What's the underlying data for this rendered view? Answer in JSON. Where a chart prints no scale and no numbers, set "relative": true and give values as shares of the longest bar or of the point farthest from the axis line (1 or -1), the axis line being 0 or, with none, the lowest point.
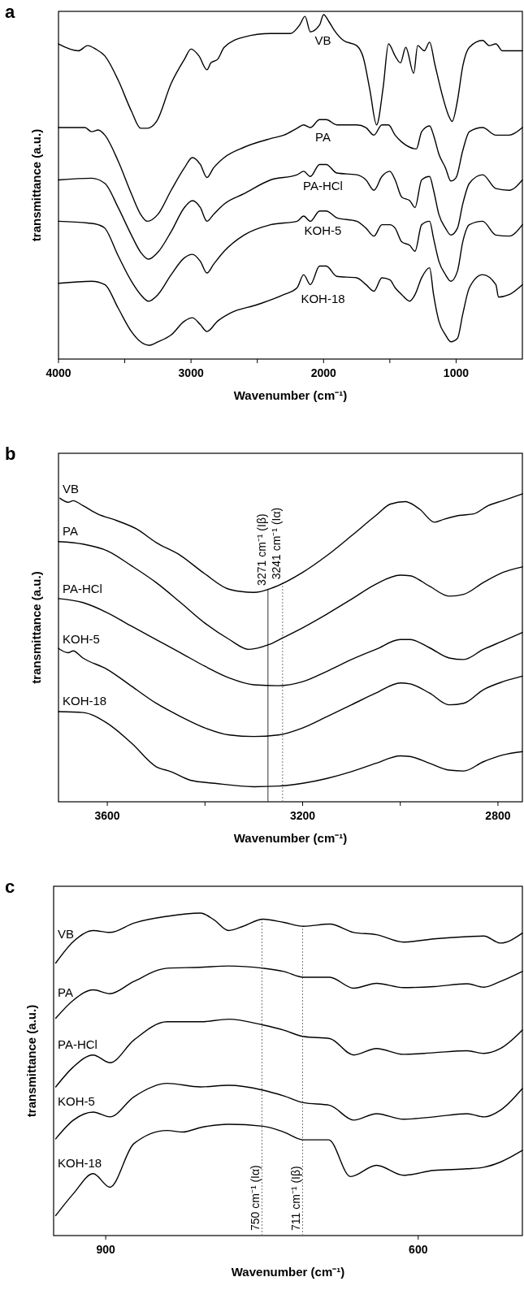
{
  "chart_data": [
    {
      "type": "line",
      "title": "a",
      "xlabel": "Wavenumber (cm⁻¹)",
      "ylabel": "transmittance (a.u.)",
      "relative": true,
      "tick_labels": "x",
      "xlim": [
        4000,
        500
      ],
      "xticks": [
        4000,
        {
          "value": 3500,
          "label": null
        },
        3000,
        {
          "value": 2500,
          "label": null
        },
        2000,
        {
          "value": 1500,
          "label": null
        },
        1000
      ],
      "series": [
        {
          "name": "VB",
          "color": "#000000",
          "x": [
            4000,
            3850,
            3780,
            3720,
            3650,
            3550,
            3450,
            3380,
            3330,
            3260,
            3150,
            3050,
            3000,
            2940,
            2880,
            2850,
            2800,
            2750,
            2600,
            2400,
            2250,
            2180,
            2140,
            2100,
            2030,
            2000,
            1960,
            1920,
            1850,
            1750,
            1700,
            1650,
            1600,
            1550,
            1510,
            1460,
            1420,
            1380,
            1320,
            1290,
            1240,
            1200,
            1160,
            1100,
            1060,
            1030,
            990,
            950,
            900,
            800,
            750,
            700,
            650,
            600,
            500
          ],
          "values": [
            0.915,
            0.895,
            0.91,
            0.9,
            0.88,
            0.81,
            0.72,
            0.67,
            0.67,
            0.69,
            0.8,
            0.87,
            0.9,
            0.88,
            0.84,
            0.86,
            0.87,
            0.905,
            0.935,
            0.945,
            0.945,
            0.97,
            0.995,
            0.95,
            0.97,
            1.0,
            0.98,
            0.955,
            0.925,
            0.91,
            0.875,
            0.78,
            0.68,
            0.79,
            0.915,
            0.88,
            0.86,
            0.905,
            0.83,
            0.91,
            0.895,
            0.92,
            0.855,
            0.76,
            0.71,
            0.69,
            0.75,
            0.85,
            0.905,
            0.925,
            0.91,
            0.915,
            0.895,
            0.895,
            0.895
          ]
        },
        {
          "name": "PA",
          "color": "#000000",
          "x": [
            4000,
            3800,
            3750,
            3700,
            3650,
            3550,
            3450,
            3380,
            3330,
            3250,
            3150,
            3050,
            2990,
            2930,
            2880,
            2830,
            2750,
            2600,
            2400,
            2300,
            2200,
            2150,
            2100,
            2030,
            1980,
            1900,
            1750,
            1680,
            1620,
            1560,
            1510,
            1460,
            1410,
            1350,
            1300,
            1260,
            1200,
            1170,
            1130,
            1080,
            1040,
            1000,
            950,
            900,
            800,
            700,
            600,
            500
          ],
          "values": [
            0.672,
            0.672,
            0.66,
            0.665,
            0.65,
            0.575,
            0.48,
            0.42,
            0.4,
            0.42,
            0.49,
            0.555,
            0.585,
            0.565,
            0.527,
            0.555,
            0.585,
            0.615,
            0.64,
            0.65,
            0.67,
            0.68,
            0.672,
            0.695,
            0.695,
            0.68,
            0.68,
            0.672,
            0.65,
            0.68,
            0.68,
            0.65,
            0.63,
            0.615,
            0.61,
            0.66,
            0.677,
            0.65,
            0.595,
            0.555,
            0.517,
            0.527,
            0.605,
            0.66,
            0.672,
            0.65,
            0.65,
            0.672
          ]
        },
        {
          "name": "PA-HCl",
          "color": "#000000",
          "x": [
            4000,
            3750,
            3650,
            3550,
            3450,
            3380,
            3320,
            3250,
            3150,
            3050,
            2990,
            2930,
            2880,
            2830,
            2750,
            2600,
            2400,
            2200,
            2150,
            2100,
            2030,
            1980,
            1900,
            1750,
            1680,
            1620,
            1560,
            1500,
            1460,
            1410,
            1350,
            1310,
            1260,
            1200,
            1170,
            1130,
            1080,
            1040,
            990,
            950,
            900,
            800,
            700,
            600,
            500
          ],
          "values": [
            0.52,
            0.525,
            0.51,
            0.44,
            0.36,
            0.31,
            0.29,
            0.31,
            0.37,
            0.44,
            0.46,
            0.44,
            0.4,
            0.42,
            0.45,
            0.48,
            0.52,
            0.535,
            0.545,
            0.53,
            0.565,
            0.565,
            0.54,
            0.535,
            0.52,
            0.49,
            0.53,
            0.545,
            0.52,
            0.47,
            0.46,
            0.44,
            0.52,
            0.53,
            0.49,
            0.42,
            0.38,
            0.36,
            0.38,
            0.45,
            0.51,
            0.535,
            0.495,
            0.49,
            0.52
          ]
        },
        {
          "name": "KOH-5",
          "color": "#000000",
          "x": [
            4000,
            3780,
            3700,
            3650,
            3550,
            3450,
            3380,
            3320,
            3250,
            3150,
            3050,
            2990,
            2930,
            2880,
            2830,
            2750,
            2600,
            2400,
            2200,
            2150,
            2100,
            2030,
            1980,
            1900,
            1750,
            1680,
            1620,
            1560,
            1500,
            1460,
            1410,
            1350,
            1310,
            1260,
            1200,
            1170,
            1130,
            1080,
            1040,
            990,
            950,
            900,
            800,
            700,
            600,
            500
          ],
          "values": [
            0.4,
            0.395,
            0.39,
            0.38,
            0.3,
            0.226,
            0.187,
            0.168,
            0.187,
            0.245,
            0.294,
            0.304,
            0.284,
            0.25,
            0.275,
            0.313,
            0.36,
            0.39,
            0.4,
            0.415,
            0.4,
            0.43,
            0.43,
            0.41,
            0.4,
            0.38,
            0.357,
            0.39,
            0.39,
            0.38,
            0.34,
            0.33,
            0.313,
            0.39,
            0.4,
            0.35,
            0.284,
            0.245,
            0.226,
            0.255,
            0.34,
            0.39,
            0.4,
            0.36,
            0.357,
            0.39
          ]
        },
        {
          "name": "KOH-18",
          "color": "#000000",
          "x": [
            4000,
            3750,
            3650,
            3550,
            3450,
            3380,
            3320,
            3250,
            3150,
            3050,
            2990,
            2930,
            2880,
            2800,
            2700,
            2500,
            2300,
            2200,
            2150,
            2100,
            2030,
            1980,
            1900,
            1750,
            1680,
            1620,
            1560,
            1500,
            1460,
            1410,
            1350,
            1310,
            1260,
            1200,
            1170,
            1130,
            1080,
            1040,
            990,
            950,
            900,
            800,
            700,
            680,
            600,
            500
          ],
          "values": [
            0.22,
            0.226,
            0.216,
            0.148,
            0.08,
            0.05,
            0.04,
            0.05,
            0.07,
            0.11,
            0.12,
            0.1,
            0.08,
            0.11,
            0.134,
            0.158,
            0.187,
            0.207,
            0.245,
            0.216,
            0.27,
            0.27,
            0.24,
            0.236,
            0.216,
            0.197,
            0.236,
            0.23,
            0.207,
            0.187,
            0.168,
            0.187,
            0.236,
            0.265,
            0.187,
            0.11,
            0.07,
            0.05,
            0.06,
            0.13,
            0.207,
            0.245,
            0.216,
            0.18,
            0.187,
            0.216
          ]
        }
      ]
    },
    {
      "type": "line",
      "title": "b",
      "xlabel": "Wavenumber (cm⁻¹)",
      "ylabel": "transmittance (a.u.)",
      "relative": true,
      "tick_labels": "x",
      "xlim": [
        3700,
        2750
      ],
      "xticks": [
        3600,
        {
          "value": 3400,
          "label": null
        },
        3200,
        {
          "value": 3000,
          "label": null
        },
        2800
      ],
      "ref_lines": [
        {
          "axis": "x",
          "value": 3271,
          "label": "3271 cm⁻¹ (Iβ)",
          "color": "#333333",
          "line_style": "solid"
        },
        {
          "axis": "x",
          "value": 3241,
          "label": "3241 cm⁻¹ (Iα)",
          "color": "#777777",
          "line_style": "dotted"
        }
      ],
      "series": [
        {
          "name": "VB",
          "color": "#000000",
          "x": [
            3697,
            3680,
            3670,
            3650,
            3620,
            3580,
            3540,
            3500,
            3450,
            3400,
            3350,
            3300,
            3260,
            3200,
            3150,
            3100,
            3050,
            3020,
            2990,
            2960,
            2930,
            2910,
            2880,
            2850,
            2820,
            2790,
            2750
          ],
          "values": [
            0.986,
            0.973,
            0.978,
            0.962,
            0.935,
            0.913,
            0.886,
            0.842,
            0.8,
            0.74,
            0.69,
            0.68,
            0.696,
            0.745,
            0.8,
            0.864,
            0.93,
            0.967,
            0.975,
            0.95,
            0.908,
            0.918,
            0.93,
            0.935,
            0.962,
            0.978,
            1.0
          ]
        },
        {
          "name": "PA",
          "color": "#000000",
          "x": [
            3700,
            3650,
            3600,
            3550,
            3500,
            3450,
            3400,
            3350,
            3310,
            3270,
            3240,
            3200,
            3150,
            3100,
            3050,
            3000,
            2980,
            2940,
            2900,
            2870,
            2830,
            2790,
            2750
          ],
          "values": [
            0.845,
            0.837,
            0.815,
            0.766,
            0.712,
            0.647,
            0.58,
            0.527,
            0.495,
            0.51,
            0.533,
            0.565,
            0.61,
            0.658,
            0.707,
            0.736,
            0.734,
            0.7,
            0.668,
            0.674,
            0.712,
            0.745,
            0.763
          ]
        },
        {
          "name": "PA-HCl",
          "color": "#000000",
          "x": [
            3700,
            3650,
            3600,
            3550,
            3500,
            3450,
            3400,
            3350,
            3300,
            3250,
            3200,
            3150,
            3100,
            3050,
            3000,
            2980,
            2940,
            2900,
            2870,
            2830,
            2790,
            2750
          ],
          "values": [
            0.66,
            0.647,
            0.614,
            0.57,
            0.527,
            0.484,
            0.44,
            0.402,
            0.38,
            0.377,
            0.39,
            0.424,
            0.462,
            0.495,
            0.527,
            0.527,
            0.5,
            0.467,
            0.462,
            0.495,
            0.522,
            0.55
          ]
        },
        {
          "name": "KOH-5",
          "color": "#000000",
          "x": [
            3700,
            3680,
            3670,
            3650,
            3600,
            3550,
            3500,
            3450,
            3400,
            3350,
            3300,
            3250,
            3200,
            3150,
            3100,
            3050,
            3000,
            2980,
            2940,
            2900,
            2870,
            2830,
            2790,
            2750
          ],
          "values": [
            0.498,
            0.484,
            0.49,
            0.467,
            0.43,
            0.375,
            0.32,
            0.277,
            0.24,
            0.217,
            0.212,
            0.217,
            0.24,
            0.277,
            0.315,
            0.353,
            0.386,
            0.383,
            0.353,
            0.315,
            0.32,
            0.364,
            0.39,
            0.408
          ]
        },
        {
          "name": "KOH-18",
          "color": "#000000",
          "x": [
            3700,
            3650,
            3600,
            3550,
            3500,
            3470,
            3430,
            3380,
            3300,
            3250,
            3200,
            3150,
            3100,
            3050,
            3000,
            2980,
            2940,
            2900,
            2870,
            2830,
            2790,
            2750
          ],
          "values": [
            0.293,
            0.29,
            0.255,
            0.19,
            0.114,
            0.098,
            0.07,
            0.06,
            0.049,
            0.051,
            0.06,
            0.076,
            0.098,
            0.125,
            0.149,
            0.147,
            0.125,
            0.103,
            0.1,
            0.13,
            0.152,
            0.163
          ]
        }
      ]
    },
    {
      "type": "line",
      "title": "c",
      "xlabel": "Wavenumber (cm⁻¹)",
      "ylabel": "transmittance (a.u.)",
      "relative": true,
      "tick_labels": "x",
      "xlim": [
        950,
        500
      ],
      "xticks": [
        900,
        600
      ],
      "ref_lines": [
        {
          "axis": "x",
          "value": 750,
          "label": "750 cm⁻¹ (Iα)",
          "color": "#777777",
          "line_style": "dotted"
        },
        {
          "axis": "x",
          "value": 711,
          "label": "711 cm⁻¹ (Iβ)",
          "color": "#777777",
          "line_style": "dotted"
        }
      ],
      "series": [
        {
          "name": "VB",
          "color": "#000000",
          "x": [
            948,
            931,
            912,
            896,
            873,
            841,
            809,
            796,
            782,
            768,
            749,
            729,
            710,
            685,
            662,
            640,
            614,
            585,
            553,
            537,
            521,
            500
          ],
          "values": [
            0.845,
            0.912,
            0.946,
            0.94,
            0.969,
            0.99,
            1.0,
            0.979,
            0.946,
            0.959,
            0.981,
            0.971,
            0.959,
            0.966,
            0.94,
            0.933,
            0.91,
            0.92,
            0.927,
            0.929,
            0.907,
            0.938
          ]
        },
        {
          "name": "PA",
          "color": "#000000",
          "x": [
            948,
            931,
            912,
            896,
            873,
            841,
            809,
            782,
            749,
            729,
            710,
            685,
            662,
            640,
            614,
            585,
            553,
            537,
            521,
            500
          ],
          "values": [
            0.674,
            0.73,
            0.762,
            0.75,
            0.788,
            0.829,
            0.832,
            0.836,
            0.829,
            0.819,
            0.801,
            0.801,
            0.767,
            0.782,
            0.769,
            0.772,
            0.781,
            0.77,
            0.788,
            0.819
          ]
        },
        {
          "name": "PA-HCl",
          "color": "#000000",
          "x": [
            948,
            931,
            912,
            896,
            873,
            841,
            809,
            782,
            749,
            729,
            710,
            685,
            662,
            640,
            614,
            585,
            553,
            537,
            521,
            500
          ],
          "values": [
            0.461,
            0.523,
            0.56,
            0.536,
            0.606,
            0.663,
            0.663,
            0.671,
            0.653,
            0.637,
            0.617,
            0.611,
            0.56,
            0.58,
            0.562,
            0.567,
            0.573,
            0.565,
            0.58,
            0.637
          ]
        },
        {
          "name": "KOH-5",
          "color": "#000000",
          "x": [
            948,
            931,
            912,
            896,
            873,
            841,
            809,
            782,
            749,
            729,
            710,
            685,
            662,
            640,
            614,
            585,
            553,
            537,
            521,
            500
          ],
          "values": [
            0.3,
            0.358,
            0.383,
            0.368,
            0.43,
            0.472,
            0.461,
            0.466,
            0.451,
            0.433,
            0.412,
            0.404,
            0.358,
            0.378,
            0.361,
            0.368,
            0.378,
            0.368,
            0.389,
            0.456
          ]
        },
        {
          "name": "KOH-18",
          "color": "#000000",
          "x": [
            948,
            931,
            912,
            896,
            873,
            841,
            826,
            809,
            782,
            749,
            729,
            710,
            686,
            665,
            640,
            614,
            585,
            553,
            537,
            521,
            500
          ],
          "values": [
            0.062,
            0.13,
            0.192,
            0.15,
            0.285,
            0.326,
            0.321,
            0.335,
            0.345,
            0.339,
            0.321,
            0.297,
            0.297,
            0.183,
            0.218,
            0.187,
            0.202,
            0.207,
            0.212,
            0.228,
            0.264
          ]
        }
      ]
    }
  ]
}
